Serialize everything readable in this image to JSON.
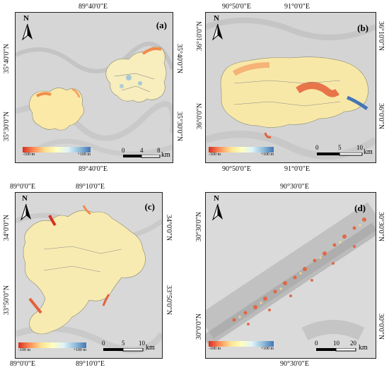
{
  "panels": [
    {
      "label": "(a)",
      "top_coords": [
        "89°40'0\"E"
      ],
      "bottom_coords": [
        "89°40'0\"E"
      ],
      "left_coords": [
        "35°40'0\"N",
        "35°30'0\"N"
      ],
      "right_coords": [
        "35°40'0\"N",
        "35°30'0\"N"
      ],
      "legend": {
        "min": "-100 m",
        "max": "+100 m"
      },
      "scale": {
        "ticks": [
          "0",
          "4",
          "8"
        ],
        "unit": "km"
      }
    },
    {
      "label": "(b)",
      "top_coords": [
        "90°50'0\"E",
        "91°0'0\"E"
      ],
      "bottom_coords": [
        "90°50'0\"E",
        "91°0'0\"E"
      ],
      "left_coords": [
        "36°10'0\"N",
        "36°0'0\"N"
      ],
      "right_coords": [
        "36°10'0\"N",
        "36°0'0\"N"
      ],
      "legend": {
        "min": "-100 m",
        "max": "+100 m"
      },
      "scale": {
        "ticks": [
          "0",
          "5",
          "10"
        ],
        "unit": "km"
      }
    },
    {
      "label": "(c)",
      "top_coords": [
        "89°0'0\"E",
        "89°10'0\"E"
      ],
      "bottom_coords": [
        "89°0'0\"E",
        "89°10'0\"E"
      ],
      "left_coords": [
        "34°0'0\"N",
        "33°50'0\"N"
      ],
      "right_coords": [
        "34°0'0\"N",
        "33°50'0\"N"
      ],
      "legend": {
        "min": "-100 m",
        "max": "+100 m"
      },
      "scale": {
        "ticks": [
          "0",
          "5",
          "10"
        ],
        "unit": "km"
      }
    },
    {
      "label": "(d)",
      "top_coords": [
        "90°30'0\"E"
      ],
      "bottom_coords": [
        "90°30'0\"E"
      ],
      "left_coords": [
        "30°30'0\"N",
        "30°0'0\"N"
      ],
      "right_coords": [
        "30°30'0\"N",
        "30°0'0\"N"
      ],
      "legend": {
        "min": "-100 m",
        "max": "+100 m"
      },
      "scale": {
        "ticks": [
          "0",
          "10",
          "20"
        ],
        "unit": "km"
      }
    }
  ],
  "north_label": "N",
  "colors": {
    "low": "#d7301f",
    "mid": "#ffffbf",
    "high": "#4575b4",
    "frame": "#222222",
    "terrain": "#d9d9d9"
  }
}
